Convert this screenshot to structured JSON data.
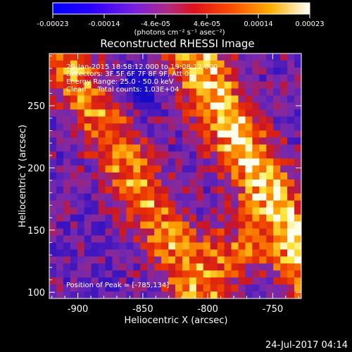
{
  "chart_data": {
    "type": "heatmap",
    "title": "Reconstructed RHESSI Image",
    "xlabel": "Heliocentric X (arcsec)",
    "ylabel": "Heliocentric Y (arcsec)",
    "xlim": [
      -922,
      -728
    ],
    "ylim": [
      95,
      292
    ],
    "x_ticks": [
      -900,
      -850,
      -800,
      -750
    ],
    "y_ticks": [
      100,
      150,
      200,
      250
    ],
    "x_tick_labels": [
      "-900",
      "-850",
      "-800",
      "-750"
    ],
    "y_tick_labels": [
      "100",
      "150",
      "200",
      "250"
    ],
    "colorbar": {
      "range": [
        -0.00023,
        0.00023
      ],
      "tick_labels": [
        "-0.00023",
        "-0.00014",
        "-4.6e-05",
        "4.6e-05",
        "0.00014",
        "0.00023"
      ],
      "unit_label": "(photons cm⁻² s⁻¹ asec⁻²)"
    },
    "annotations": [
      "29-Jan-2015 18:58:12.000 to 19:08:12.000",
      "Detectors: 3F 5F 6F 7F 8F 9F, Att 0",
      "Energy Range: 25.0 - 50.0 keV",
      "Clean     Total counts: 1.03E+04"
    ],
    "peak_label": "Position of Peak = [-785,134]",
    "peak_position": [
      -785,
      134
    ],
    "colors": {
      "low": "#0000ff",
      "mid": "#9933cc",
      "high": "#ff2200",
      "peak": "#ffffff"
    }
  },
  "footer": {
    "timestamp": "24-Jul-2017 04:14"
  }
}
